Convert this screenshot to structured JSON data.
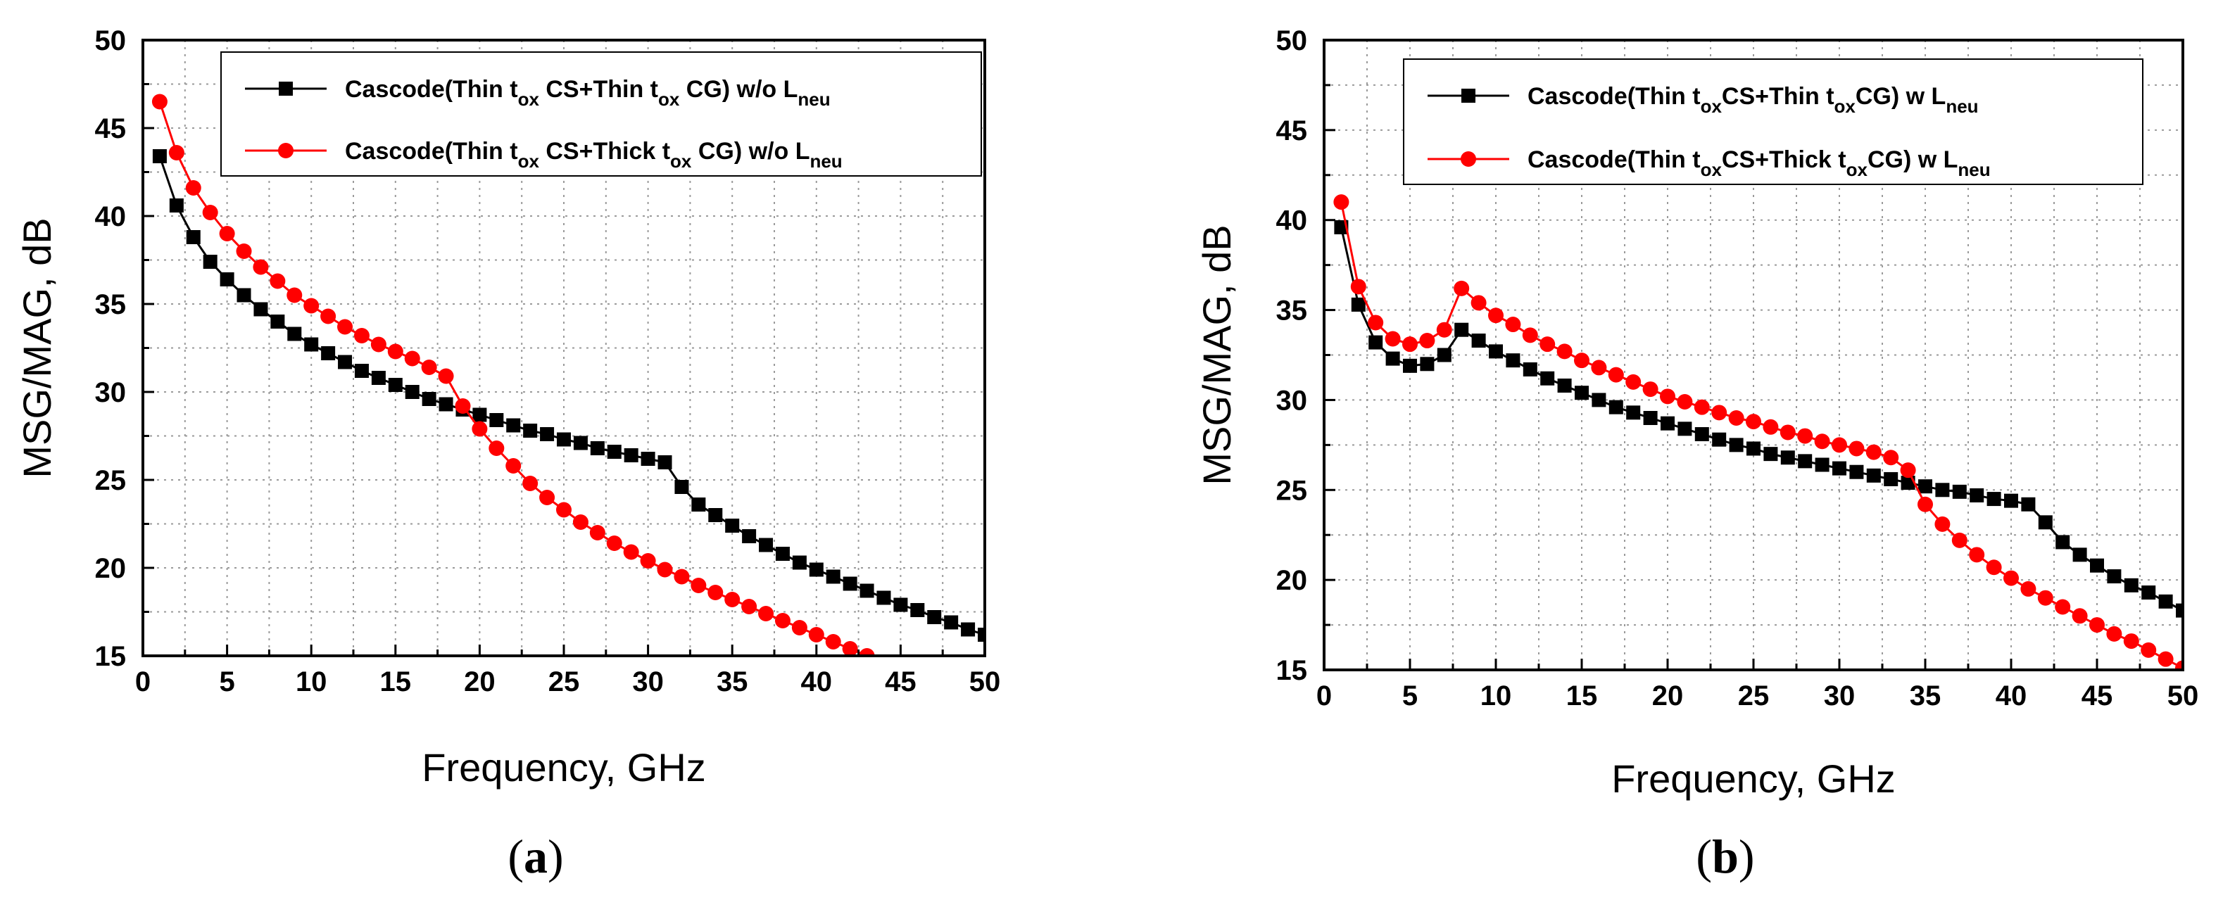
{
  "chart_data": [
    {
      "type": "line",
      "panel_label": "a",
      "xlabel": "Frequency, GHz",
      "ylabel": "MSG/MAG, dB",
      "xlim": [
        0,
        50
      ],
      "ylim": [
        15,
        50
      ],
      "xticks": [
        0,
        5,
        10,
        15,
        20,
        25,
        30,
        35,
        40,
        45,
        50
      ],
      "yticks": [
        15,
        20,
        25,
        30,
        35,
        40,
        45,
        50
      ],
      "grid": true,
      "legend_position": "top-right",
      "series": [
        {
          "name": "Cascode(Thin tox CS+Thin tox CG) w/o Lneu",
          "legend": {
            "pre": "Cascode(Thin t",
            "sub1": "ox",
            "mid": " CS+Thin t",
            "sub2": "ox",
            "post": " CG) w/o L",
            "sub3": "neu"
          },
          "color": "#000000",
          "marker": "square",
          "x": [
            1,
            2,
            3,
            4,
            5,
            6,
            7,
            8,
            9,
            10,
            11,
            12,
            13,
            14,
            15,
            16,
            17,
            18,
            19,
            20,
            21,
            22,
            23,
            24,
            25,
            26,
            27,
            28,
            29,
            30,
            31,
            32,
            33,
            34,
            35,
            36,
            37,
            38,
            39,
            40,
            41,
            42,
            43,
            44,
            45,
            46,
            47,
            48,
            49,
            50
          ],
          "y": [
            43.4,
            40.6,
            38.8,
            37.4,
            36.4,
            35.5,
            34.7,
            34.0,
            33.3,
            32.7,
            32.2,
            31.7,
            31.2,
            30.8,
            30.4,
            30.0,
            29.6,
            29.3,
            29.0,
            28.7,
            28.4,
            28.1,
            27.8,
            27.6,
            27.3,
            27.1,
            26.8,
            26.6,
            26.4,
            26.2,
            26.0,
            24.6,
            23.6,
            23.0,
            22.4,
            21.8,
            21.3,
            20.8,
            20.3,
            19.9,
            19.5,
            19.1,
            18.7,
            18.3,
            17.9,
            17.6,
            17.2,
            16.9,
            16.5,
            16.2
          ]
        },
        {
          "name": "Cascode(Thin tox CS+Thick tox CG) w/o Lneu",
          "legend": {
            "pre": "Cascode(Thin t",
            "sub1": "ox",
            "mid": " CS+Thick t",
            "sub2": "ox",
            "post": " CG) w/o L",
            "sub3": "neu"
          },
          "color": "#ff0000",
          "marker": "circle",
          "x": [
            1,
            2,
            3,
            4,
            5,
            6,
            7,
            8,
            9,
            10,
            11,
            12,
            13,
            14,
            15,
            16,
            17,
            18,
            19,
            20,
            21,
            22,
            23,
            24,
            25,
            26,
            27,
            28,
            29,
            30,
            31,
            32,
            33,
            34,
            35,
            36,
            37,
            38,
            39,
            40,
            41,
            42,
            43
          ],
          "y": [
            46.5,
            43.6,
            41.6,
            40.2,
            39.0,
            38.0,
            37.1,
            36.3,
            35.5,
            34.9,
            34.3,
            33.7,
            33.2,
            32.7,
            32.3,
            31.9,
            31.4,
            30.9,
            29.2,
            27.9,
            26.8,
            25.8,
            24.8,
            24.0,
            23.3,
            22.6,
            22.0,
            21.4,
            20.9,
            20.4,
            19.9,
            19.5,
            19.0,
            18.6,
            18.2,
            17.8,
            17.4,
            17.0,
            16.6,
            16.2,
            15.8,
            15.4,
            15.0
          ]
        }
      ]
    },
    {
      "type": "line",
      "panel_label": "b",
      "xlabel": "Frequency, GHz",
      "ylabel": "MSG/MAG, dB",
      "xlim": [
        0,
        50
      ],
      "ylim": [
        15,
        50
      ],
      "xticks": [
        0,
        5,
        10,
        15,
        20,
        25,
        30,
        35,
        40,
        45,
        50
      ],
      "yticks": [
        15,
        20,
        25,
        30,
        35,
        40,
        45,
        50
      ],
      "grid": true,
      "legend_position": "top-right",
      "series": [
        {
          "name": "Cascode(Thin toxCS+Thin toxCG) w Lneu",
          "legend": {
            "pre": "Cascode(Thin t",
            "sub1": "ox",
            "mid": "CS+Thin t",
            "sub2": "ox",
            "post": "CG) w L",
            "sub3": "neu"
          },
          "color": "#000000",
          "marker": "square",
          "x": [
            1,
            2,
            3,
            4,
            5,
            6,
            7,
            8,
            9,
            10,
            11,
            12,
            13,
            14,
            15,
            16,
            17,
            18,
            19,
            20,
            21,
            22,
            23,
            24,
            25,
            26,
            27,
            28,
            29,
            30,
            31,
            32,
            33,
            34,
            35,
            36,
            37,
            38,
            39,
            40,
            41,
            42,
            43,
            44,
            45,
            46,
            47,
            48,
            49,
            50
          ],
          "y": [
            39.6,
            35.3,
            33.2,
            32.3,
            31.9,
            32.0,
            32.5,
            33.9,
            33.3,
            32.7,
            32.2,
            31.7,
            31.2,
            30.8,
            30.4,
            30.0,
            29.6,
            29.3,
            29.0,
            28.7,
            28.4,
            28.1,
            27.8,
            27.5,
            27.3,
            27.0,
            26.8,
            26.6,
            26.4,
            26.2,
            26.0,
            25.8,
            25.6,
            25.4,
            25.2,
            25.0,
            24.9,
            24.7,
            24.5,
            24.4,
            24.2,
            23.2,
            22.1,
            21.4,
            20.8,
            20.2,
            19.7,
            19.3,
            18.8,
            18.3
          ]
        },
        {
          "name": "Cascode(Thin toxCS+Thick toxCG) w Lneu",
          "legend": {
            "pre": "Cascode(Thin t",
            "sub1": "ox",
            "mid": "CS+Thick t",
            "sub2": "ox",
            "post": "CG) w L",
            "sub3": "neu"
          },
          "color": "#ff0000",
          "marker": "circle",
          "x": [
            1,
            2,
            3,
            4,
            5,
            6,
            7,
            8,
            9,
            10,
            11,
            12,
            13,
            14,
            15,
            16,
            17,
            18,
            19,
            20,
            21,
            22,
            23,
            24,
            25,
            26,
            27,
            28,
            29,
            30,
            31,
            32,
            33,
            34,
            35,
            36,
            37,
            38,
            39,
            40,
            41,
            42,
            43,
            44,
            45,
            46,
            47,
            48,
            49,
            50
          ],
          "y": [
            41.0,
            36.3,
            34.3,
            33.4,
            33.1,
            33.3,
            33.9,
            36.2,
            35.4,
            34.7,
            34.2,
            33.6,
            33.1,
            32.7,
            32.2,
            31.8,
            31.4,
            31.0,
            30.6,
            30.2,
            29.9,
            29.6,
            29.3,
            29.0,
            28.8,
            28.5,
            28.2,
            28.0,
            27.7,
            27.5,
            27.3,
            27.1,
            26.8,
            26.1,
            24.2,
            23.1,
            22.2,
            21.4,
            20.7,
            20.1,
            19.5,
            19.0,
            18.5,
            18.0,
            17.5,
            17.0,
            16.6,
            16.1,
            15.6,
            15.1
          ]
        }
      ]
    }
  ]
}
